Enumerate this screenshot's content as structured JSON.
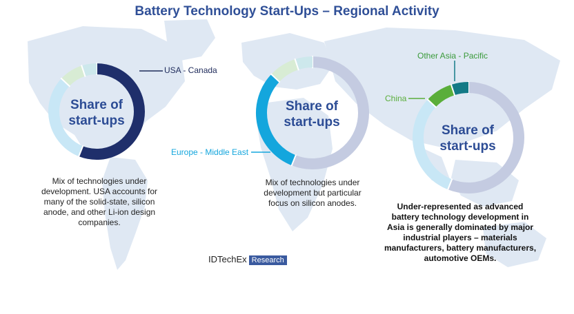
{
  "title": "Battery Technology Start-Ups – Regional Activity",
  "brand": {
    "name": "IDTechEx",
    "badge": "Research"
  },
  "colors": {
    "title": "#2f4f97",
    "usa": "#1f2f6b",
    "europe": "#14a6dd",
    "china": "#5aae3a",
    "other_asia": "#137a86",
    "light_blue": "#c8e7f6",
    "light_green": "#d8ecd4",
    "light_teal": "#cde8ec",
    "grey": "#c4cbe1",
    "map": "#dce6f2"
  },
  "chart_data": [
    {
      "type": "pie",
      "center_label": "Share of start-ups",
      "callout": "USA - Canada",
      "description": "Mix of technologies under development. USA accounts for many of the solid-state, silicon anode, and other Li-ion design companies.",
      "slices": [
        {
          "label": "USA - Canada",
          "value": 56,
          "color": "#1f2f6b"
        },
        {
          "label": "Europe - Middle East",
          "value": 31,
          "color": "#c8e7f6"
        },
        {
          "label": "China",
          "value": 8,
          "color": "#d8ecd4"
        },
        {
          "label": "Other Asia - Pacific",
          "value": 5,
          "color": "#cde8ec"
        }
      ]
    },
    {
      "type": "pie",
      "center_label": "Share of start-ups",
      "callout": "Europe - Middle East",
      "description": "Mix of technologies under development but particular focus on silicon anodes.",
      "slices": [
        {
          "label": "USA - Canada",
          "value": 56,
          "color": "#c4cbe1"
        },
        {
          "label": "Europe - Middle East",
          "value": 31,
          "color": "#14a6dd"
        },
        {
          "label": "China",
          "value": 8,
          "color": "#d8ecd4"
        },
        {
          "label": "Other Asia - Pacific",
          "value": 5,
          "color": "#cde8ec"
        }
      ]
    },
    {
      "type": "pie",
      "center_label": "Share of start-ups",
      "callouts": [
        "China",
        "Other Asia - Pacific"
      ],
      "description": "Under-represented as advanced battery technology development in Asia is generally dominated by major industrial players – materials manufacturers, battery manufacturers, automotive OEMs.",
      "slices": [
        {
          "label": "USA - Canada",
          "value": 56,
          "color": "#c4cbe1"
        },
        {
          "label": "Europe - Middle East",
          "value": 31,
          "color": "#c8e7f6"
        },
        {
          "label": "China",
          "value": 8,
          "color": "#5aae3a"
        },
        {
          "label": "Other Asia - Pacific",
          "value": 5,
          "color": "#137a86"
        }
      ]
    }
  ]
}
